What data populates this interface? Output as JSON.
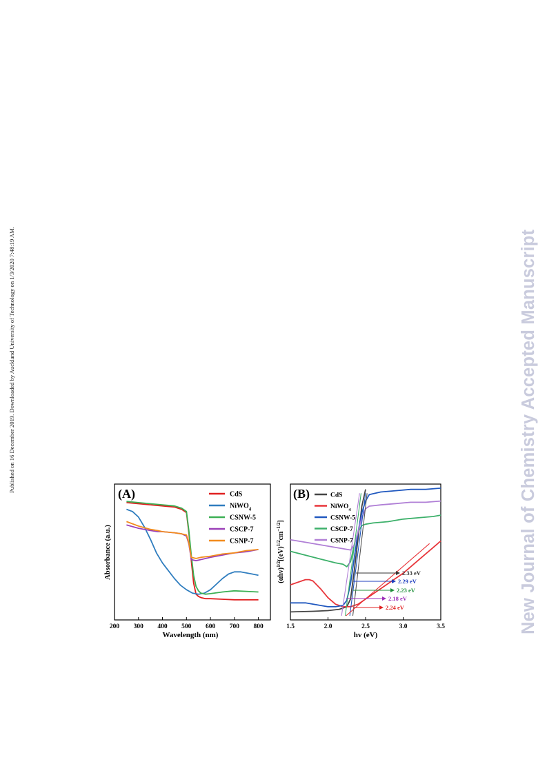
{
  "side_note": "Published on 16 December 2019. Downloaded by Auckland University of Technology on 1/3/2020 7:48:19 AM.",
  "watermark": "New Journal of Chemistry Accepted Manuscript",
  "chart_data": [
    {
      "type": "line",
      "panel_label": "(A)",
      "xlabel": "Wavelength (nm)",
      "ylabel": "Absorbance (a.u.)",
      "xlim": [
        200,
        850
      ],
      "xticks": [
        200,
        300,
        400,
        500,
        600,
        700,
        800
      ],
      "y_ticks_shown": false,
      "ylim": [
        0,
        1
      ],
      "grid": false,
      "legend_position": "top-right",
      "series": [
        {
          "name": "CdS",
          "color": "#e02020",
          "x": [
            250,
            300,
            350,
            400,
            450,
            480,
            500,
            510,
            520,
            530,
            540,
            550,
            560,
            580,
            600,
            650,
            700,
            750,
            800
          ],
          "y": [
            0.97,
            0.96,
            0.95,
            0.94,
            0.93,
            0.91,
            0.88,
            0.7,
            0.45,
            0.25,
            0.15,
            0.13,
            0.12,
            0.11,
            0.11,
            0.105,
            0.1,
            0.1,
            0.1
          ]
        },
        {
          "name": "NiWO",
          "name_subscript": "4",
          "color": "#2f7dbf",
          "x": [
            250,
            275,
            300,
            325,
            350,
            375,
            400,
            425,
            450,
            475,
            500,
            525,
            550,
            575,
            600,
            625,
            650,
            675,
            700,
            725,
            750,
            775,
            800
          ],
          "y": [
            0.91,
            0.89,
            0.84,
            0.75,
            0.64,
            0.52,
            0.43,
            0.36,
            0.29,
            0.23,
            0.19,
            0.16,
            0.15,
            0.16,
            0.19,
            0.24,
            0.29,
            0.33,
            0.35,
            0.35,
            0.34,
            0.33,
            0.32
          ]
        },
        {
          "name": "CSNW-5",
          "color": "#3cb054",
          "x": [
            250,
            300,
            350,
            400,
            450,
            480,
            500,
            510,
            520,
            530,
            540,
            550,
            560,
            580,
            600,
            650,
            700,
            750,
            800
          ],
          "y": [
            0.98,
            0.97,
            0.96,
            0.95,
            0.94,
            0.92,
            0.89,
            0.72,
            0.5,
            0.32,
            0.22,
            0.18,
            0.16,
            0.15,
            0.155,
            0.17,
            0.18,
            0.175,
            0.17
          ]
        },
        {
          "name": "CSCP-7",
          "color": "#9b40b8",
          "x": [
            250,
            300,
            350,
            380,
            400,
            450,
            480,
            500,
            510,
            520,
            540,
            560,
            600,
            650,
            700,
            750,
            800
          ],
          "y": [
            0.77,
            0.74,
            0.72,
            0.71,
            0.71,
            0.7,
            0.69,
            0.67,
            0.6,
            0.46,
            0.45,
            0.46,
            0.48,
            0.5,
            0.52,
            0.53,
            0.55
          ]
        },
        {
          "name": "CSNP-7",
          "color": "#f28c1e",
          "x": [
            250,
            300,
            350,
            380,
            400,
            450,
            480,
            500,
            510,
            520,
            540,
            560,
            600,
            650,
            700,
            750,
            800
          ],
          "y": [
            0.8,
            0.76,
            0.73,
            0.72,
            0.71,
            0.7,
            0.69,
            0.68,
            0.61,
            0.48,
            0.47,
            0.48,
            0.49,
            0.51,
            0.52,
            0.54,
            0.55
          ]
        }
      ]
    },
    {
      "type": "line",
      "panel_label": "(B)",
      "xlabel": "hv (eV)",
      "ylabel": "(αhv)^1/2[(eV)^1/2cm^-1/2]",
      "xlim": [
        1.5,
        3.5
      ],
      "xticks": [
        1.5,
        2.0,
        2.5,
        3.0,
        3.5
      ],
      "y_ticks_shown": false,
      "ylim": [
        0,
        1
      ],
      "grid": false,
      "legend_position": "top-left",
      "series": [
        {
          "name": "CdS",
          "color": "#444444",
          "x": [
            1.5,
            1.8,
            2.0,
            2.15,
            2.25,
            2.3,
            2.35,
            2.4,
            2.45,
            2.5
          ],
          "y": [
            0.03,
            0.035,
            0.04,
            0.05,
            0.07,
            0.13,
            0.35,
            0.6,
            0.85,
            0.98
          ]
        },
        {
          "name": "NiWO",
          "name_subscript": "4",
          "color": "#e8353a",
          "x": [
            1.5,
            1.6,
            1.7,
            1.75,
            1.8,
            1.9,
            2.0,
            2.1,
            2.2,
            2.3,
            2.4,
            2.5,
            2.6,
            2.8,
            3.0,
            3.2,
            3.3,
            3.4,
            3.5
          ],
          "y": [
            0.24,
            0.26,
            0.28,
            0.28,
            0.27,
            0.21,
            0.14,
            0.09,
            0.07,
            0.07,
            0.09,
            0.13,
            0.17,
            0.25,
            0.33,
            0.43,
            0.48,
            0.53,
            0.58
          ]
        },
        {
          "name": "CSNW-5",
          "color": "#2058bf",
          "x": [
            1.5,
            1.7,
            1.9,
            2.0,
            2.1,
            2.2,
            2.25,
            2.3,
            2.35,
            2.4,
            2.45,
            2.5,
            2.55,
            2.7,
            2.9,
            3.1,
            3.3,
            3.5
          ],
          "y": [
            0.1,
            0.1,
            0.08,
            0.07,
            0.07,
            0.08,
            0.12,
            0.25,
            0.45,
            0.65,
            0.8,
            0.89,
            0.94,
            0.96,
            0.97,
            0.98,
            0.98,
            0.99
          ]
        },
        {
          "name": "CSCP-7",
          "color": "#3cb06a",
          "x": [
            1.5,
            1.7,
            1.9,
            2.1,
            2.2,
            2.25,
            2.3,
            2.35,
            2.4,
            2.45,
            2.5,
            2.6,
            2.8,
            3.0,
            3.2,
            3.4,
            3.5
          ],
          "y": [
            0.5,
            0.47,
            0.44,
            0.41,
            0.4,
            0.38,
            0.42,
            0.55,
            0.65,
            0.7,
            0.71,
            0.72,
            0.73,
            0.75,
            0.76,
            0.77,
            0.78
          ]
        },
        {
          "name": "CSNP-7",
          "color": "#b07fd6",
          "x": [
            1.5,
            1.7,
            1.9,
            2.1,
            2.2,
            2.3,
            2.35,
            2.4,
            2.45,
            2.5,
            2.55,
            2.7,
            2.9,
            3.1,
            3.3,
            3.5
          ],
          "y": [
            0.59,
            0.57,
            0.55,
            0.53,
            0.52,
            0.51,
            0.55,
            0.65,
            0.76,
            0.83,
            0.85,
            0.86,
            0.87,
            0.88,
            0.88,
            0.89
          ]
        }
      ],
      "annotations": [
        {
          "label": "2.33 eV",
          "value": 2.33,
          "color": "#333333"
        },
        {
          "label": "2.29 eV",
          "value": 2.29,
          "color": "#1f3fbf"
        },
        {
          "label": "2.23 eV",
          "value": 2.23,
          "color": "#1f8f3a"
        },
        {
          "label": "2.18 eV",
          "value": 2.18,
          "color": "#9b2fb8"
        },
        {
          "label": "2.24 eV",
          "value": 2.24,
          "color": "#e02020"
        }
      ]
    }
  ]
}
